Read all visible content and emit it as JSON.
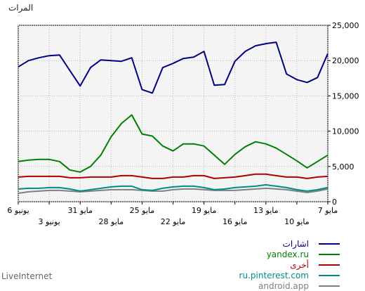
{
  "chart_data": {
    "type": "line",
    "ylabel": "المرات",
    "ylim": [
      0,
      25000
    ],
    "yticks": [
      "0",
      "5,000",
      "10,000",
      "15,000",
      "20,000",
      "25,000"
    ],
    "x": [
      "7 مايو",
      "8 مايو",
      "9 مايو",
      "10 مايو",
      "11 مايو",
      "12 مايو",
      "13 مايو",
      "14 مايو",
      "15 مايو",
      "16 مايو",
      "17 مايو",
      "18 مايو",
      "19 مايو",
      "20 مايو",
      "21 مايو",
      "22 مايو",
      "23 مايو",
      "24 مايو",
      "25 مايو",
      "26 مايو",
      "27 مايو",
      "28 مايو",
      "29 مايو",
      "30 مايو",
      "31 مايو",
      "1 يونيو",
      "2 يونيو",
      "3 يونيو",
      "4 يونيو",
      "5 يونيو",
      "6 يونيو"
    ],
    "xticks_row1": [
      {
        "i": 0,
        "label": "7 مايو"
      },
      {
        "i": 6,
        "label": "13 مايو"
      },
      {
        "i": 12,
        "label": "19 مايو"
      },
      {
        "i": 18,
        "label": "25 مايو"
      },
      {
        "i": 24,
        "label": "31 مايو"
      },
      {
        "i": 30,
        "label": "6 يونيو"
      }
    ],
    "xticks_row2": [
      {
        "i": 3,
        "label": "10 مايو"
      },
      {
        "i": 9,
        "label": "16 مايو"
      },
      {
        "i": 15,
        "label": "22 مايو"
      },
      {
        "i": 21,
        "label": "28 مايو"
      },
      {
        "i": 27,
        "label": "3 يونيو"
      }
    ],
    "grid": true,
    "legend_position": "bottom-right",
    "series": [
      {
        "name": "اشارات",
        "color": "#000080",
        "values": [
          21000,
          17600,
          16900,
          17300,
          18100,
          22600,
          22400,
          22100,
          21300,
          19900,
          16600,
          16500,
          21300,
          20500,
          20300,
          19600,
          19000,
          15400,
          15900,
          20400,
          19900,
          20000,
          20100,
          19000,
          16400,
          18600,
          20800,
          20700,
          20400,
          20000,
          19100
        ]
      },
      {
        "name": "yandex.ru",
        "color": "#008000",
        "values": [
          6600,
          5700,
          4800,
          5800,
          6700,
          7600,
          8200,
          8500,
          7800,
          6700,
          5300,
          6600,
          7900,
          8200,
          8200,
          7200,
          7900,
          9300,
          9600,
          12300,
          11100,
          9200,
          6600,
          5000,
          4200,
          4500,
          5700,
          6000,
          6000,
          5900,
          5700
        ]
      },
      {
        "name": "أخرى",
        "color": "#b00000",
        "values": [
          3600,
          3500,
          3300,
          3500,
          3500,
          3700,
          3900,
          3900,
          3700,
          3500,
          3400,
          3300,
          3700,
          3700,
          3500,
          3500,
          3300,
          3300,
          3500,
          3700,
          3700,
          3500,
          3500,
          3500,
          3400,
          3400,
          3600,
          3600,
          3600,
          3600,
          3500
        ]
      },
      {
        "name": "ru.pinterest.com",
        "color": "#008b8b",
        "values": [
          2000,
          1700,
          1500,
          1700,
          2000,
          2200,
          2400,
          2200,
          2100,
          2000,
          1800,
          1700,
          2000,
          2200,
          2200,
          2100,
          1900,
          1600,
          1700,
          2200,
          2200,
          2100,
          1900,
          1700,
          1500,
          1800,
          2000,
          2000,
          1900,
          1900,
          1800
        ]
      },
      {
        "name": "android.app",
        "color": "#808080",
        "values": [
          1800,
          1500,
          1300,
          1500,
          1700,
          1800,
          1900,
          1800,
          1700,
          1600,
          1600,
          1600,
          1700,
          1800,
          1800,
          1700,
          1500,
          1500,
          1600,
          1700,
          1700,
          1700,
          1600,
          1500,
          1400,
          1500,
          1600,
          1600,
          1500,
          1400,
          1200
        ]
      }
    ]
  },
  "branding": "LiveInternet"
}
